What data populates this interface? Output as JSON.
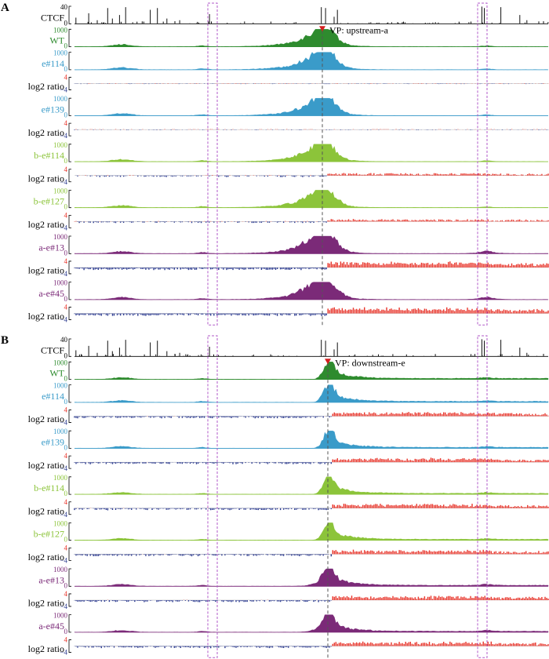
{
  "colors": {
    "ctcf": "#111111",
    "wt": "#2e8b2e",
    "e": "#3a9bc9",
    "b": "#8cc43a",
    "a": "#7b2a78",
    "ratio_up": "#e8342a",
    "ratio_down": "#2b3a8f",
    "highlight_box": "#b05ac8",
    "vp_marker": "#d42020",
    "vp_line": "#555555"
  },
  "chart_data": [
    {
      "panel": "A",
      "type": "area",
      "viewpoint": "VP: upstream-a",
      "tracks": [
        {
          "label": "CTCF",
          "kind": "ctcf",
          "ticks": [
            "40",
            "0"
          ]
        },
        {
          "label": "WT",
          "kind": "signal",
          "color_key": "wt",
          "ticks": [
            "1000",
            "0"
          ]
        },
        {
          "label": "e#114",
          "kind": "signal",
          "color_key": "e",
          "ticks": [
            "1000",
            "0"
          ]
        },
        {
          "label": "log2 ratio",
          "kind": "ratio",
          "ticks": [
            "4",
            "−4"
          ]
        },
        {
          "label": "e#139",
          "kind": "signal",
          "color_key": "e",
          "ticks": [
            "1000",
            "0"
          ]
        },
        {
          "label": "log2 ratio",
          "kind": "ratio",
          "ticks": [
            "4",
            "−4"
          ]
        },
        {
          "label": "b-e#114",
          "kind": "signal",
          "color_key": "b",
          "ticks": [
            "1000",
            "0"
          ]
        },
        {
          "label": "log2 ratio",
          "kind": "ratio",
          "ticks": [
            "4",
            "−4"
          ]
        },
        {
          "label": "b-e#127",
          "kind": "signal",
          "color_key": "b",
          "ticks": [
            "1000",
            "0"
          ]
        },
        {
          "label": "log2 ratio",
          "kind": "ratio",
          "ticks": [
            "4",
            "−4"
          ]
        },
        {
          "label": "a-e#13",
          "kind": "signal",
          "color_key": "a",
          "ticks": [
            "1000",
            "0"
          ]
        },
        {
          "label": "log2 ratio",
          "kind": "ratio",
          "ticks": [
            "4",
            "−4"
          ]
        },
        {
          "label": "a-e#45",
          "kind": "signal",
          "color_key": "a",
          "ticks": [
            "1000",
            "0"
          ]
        },
        {
          "label": "log2 ratio",
          "kind": "ratio",
          "ticks": [
            "4",
            "−4"
          ]
        }
      ]
    },
    {
      "panel": "B",
      "type": "area",
      "viewpoint": "VP: downstream-e",
      "tracks": [
        {
          "label": "CTCF",
          "kind": "ctcf",
          "ticks": [
            "40",
            "0"
          ]
        },
        {
          "label": "WT",
          "kind": "signal",
          "color_key": "wt",
          "ticks": [
            "1000",
            "0"
          ]
        },
        {
          "label": "e#114",
          "kind": "signal",
          "color_key": "e",
          "ticks": [
            "1000",
            "0"
          ]
        },
        {
          "label": "log2 ratio",
          "kind": "ratio",
          "ticks": [
            "4",
            "−4"
          ]
        },
        {
          "label": "e#139",
          "kind": "signal",
          "color_key": "e",
          "ticks": [
            "1000",
            "0"
          ]
        },
        {
          "label": "log2 ratio",
          "kind": "ratio",
          "ticks": [
            "4",
            "−4"
          ]
        },
        {
          "label": "b-e#114",
          "kind": "signal",
          "color_key": "b",
          "ticks": [
            "1000",
            "0"
          ]
        },
        {
          "label": "log2 ratio",
          "kind": "ratio",
          "ticks": [
            "4",
            "−4"
          ]
        },
        {
          "label": "b-e#127",
          "kind": "signal",
          "color_key": "b",
          "ticks": [
            "1000",
            "0"
          ]
        },
        {
          "label": "log2 ratio",
          "kind": "ratio",
          "ticks": [
            "4",
            "−4"
          ]
        },
        {
          "label": "a-e#13",
          "kind": "signal",
          "color_key": "a",
          "ticks": [
            "1000",
            "0"
          ]
        },
        {
          "label": "log2 ratio",
          "kind": "ratio",
          "ticks": [
            "4",
            "−4"
          ]
        },
        {
          "label": "a-e#45",
          "kind": "signal",
          "color_key": "a",
          "ticks": [
            "1000",
            "0"
          ]
        },
        {
          "label": "log2 ratio",
          "kind": "ratio",
          "ticks": [
            "4",
            "−4"
          ]
        }
      ]
    }
  ]
}
